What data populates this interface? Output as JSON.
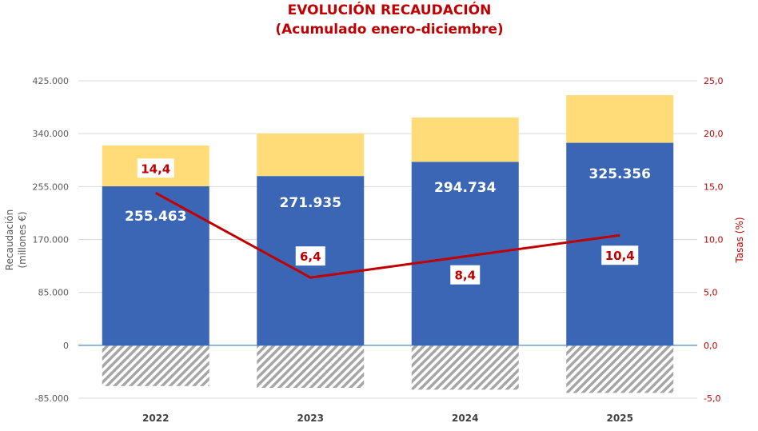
{
  "chart_data": {
    "type": "bar",
    "title": "EVOLUCIÓN RECAUDACIÓN",
    "subtitle": "(Acumulado enero-diciembre)",
    "categories": [
      "2022",
      "2023",
      "2024",
      "2025"
    ],
    "ylabel": "Recaudación (millones €)",
    "ylabel_lines": [
      "Recaudación",
      "(millones €)"
    ],
    "y2label": "Tasas (%)",
    "ylim": [
      -85000,
      425000
    ],
    "y2lim": [
      -5,
      25
    ],
    "yticks": [
      "425.000",
      "340.000",
      "255.000",
      "170.000",
      "85.000",
      "0",
      "-85.000"
    ],
    "y2ticks": [
      "25,0",
      "20,0",
      "15,0",
      "10,0",
      "5,0",
      "0,0",
      "-5,0"
    ],
    "grid": true,
    "series": [
      {
        "kind": "stacked-bar",
        "color": "#3a66b5",
        "values": [
          255463,
          271935,
          294734,
          325356
        ],
        "labels": [
          "255.463",
          "271.935",
          "294.734",
          "325.356"
        ]
      },
      {
        "kind": "stacked-bar",
        "color": "#ffdc78",
        "values": [
          65500,
          68300,
          71300,
          76500
        ]
      },
      {
        "kind": "negative-hatched-bar",
        "color": "#a6a6a6",
        "values": [
          -65500,
          -68300,
          -71300,
          -76500
        ]
      },
      {
        "kind": "line",
        "axis": "right",
        "color": "#c00000",
        "values": [
          14.4,
          6.4,
          8.4,
          10.4
        ],
        "labels": [
          "14,4",
          "6,4",
          "8,4",
          "10,4"
        ]
      }
    ]
  }
}
